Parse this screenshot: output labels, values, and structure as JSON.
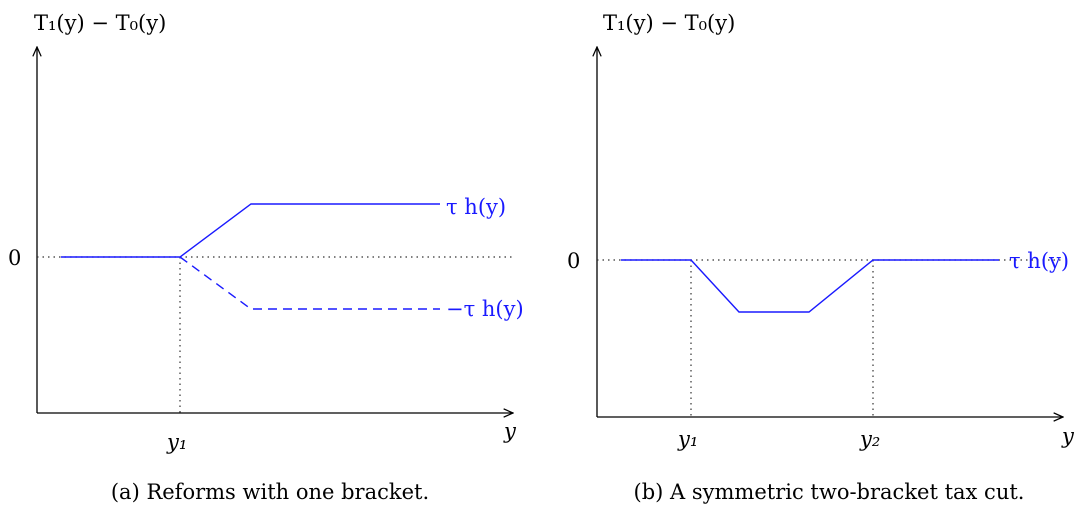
{
  "panel_a": {
    "ylabel": "T₁(y) − T₀(y)",
    "xlabel": "y",
    "zero_label": "0",
    "tick_y1": "y₁",
    "curve_pos_label": "τ h(y)",
    "curve_neg_label": "−τ h(y)",
    "caption": "(a) Reforms with one bracket."
  },
  "panel_b": {
    "ylabel": "T₁(y) − T₀(y)",
    "xlabel": "y",
    "zero_label": "0",
    "tick_y1": "y₁",
    "tick_y2": "y₂",
    "curve_label": "τ h(y)",
    "caption": "(b) A symmetric two-bracket tax cut."
  },
  "colors": {
    "curve": "#1a1aff",
    "axis": "#000000",
    "guide": "#333333"
  }
}
